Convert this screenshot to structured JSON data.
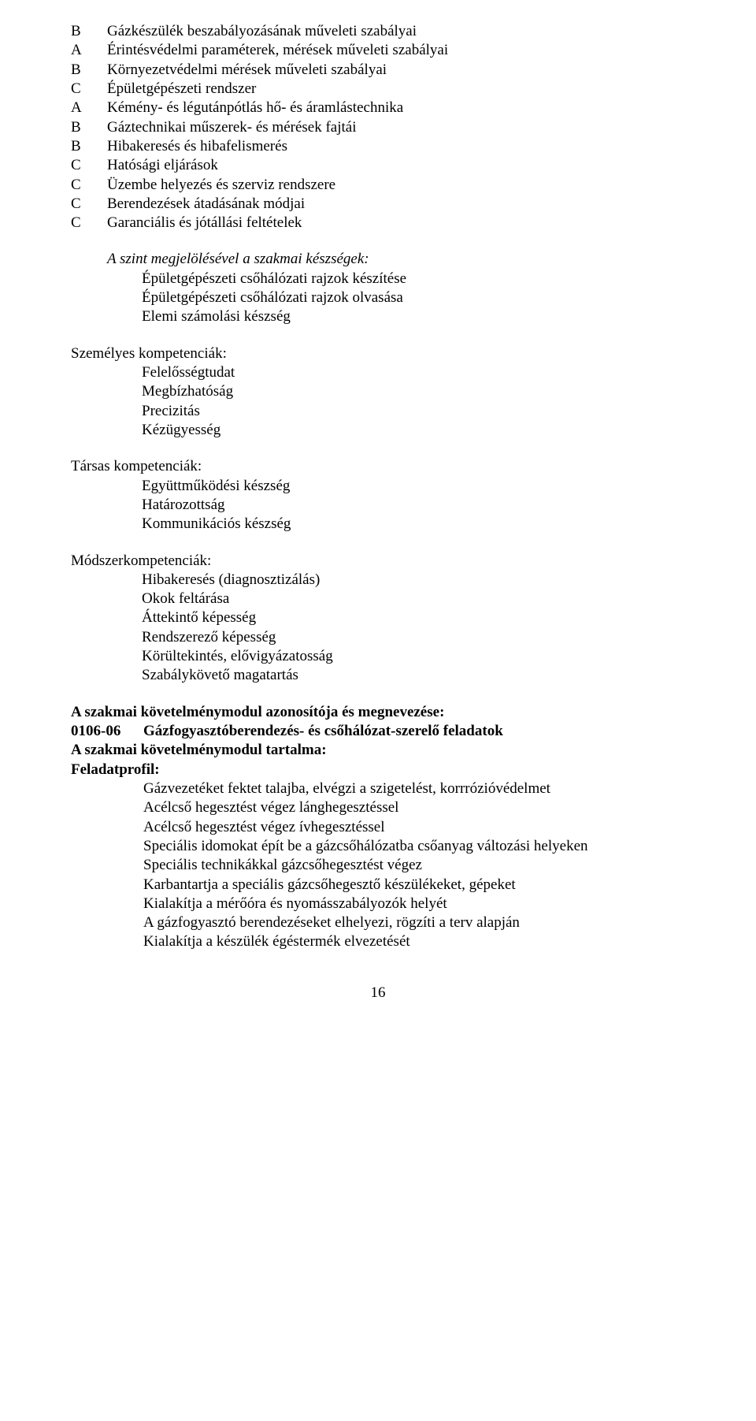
{
  "letterList": [
    {
      "letter": "B",
      "text": "Gázkészülék beszabályozásának műveleti szabályai"
    },
    {
      "letter": "A",
      "text": "Érintésvédelmi paraméterek, mérések műveleti szabályai"
    },
    {
      "letter": "B",
      "text": "Környezetvédelmi mérések műveleti szabályai"
    },
    {
      "letter": "C",
      "text": "Épületgépészeti rendszer"
    },
    {
      "letter": "A",
      "text": "Kémény- és légutánpótlás hő- és áramlástechnika"
    },
    {
      "letter": "B",
      "text": "Gáztechnikai műszerek- és mérések fajtái"
    },
    {
      "letter": "B",
      "text": "Hibakeresés és hibafelismerés"
    },
    {
      "letter": "C",
      "text": "Hatósági eljárások"
    },
    {
      "letter": "C",
      "text": "Üzembe helyezés és szerviz rendszere"
    },
    {
      "letter": "C",
      "text": "Berendezések átadásának módjai"
    },
    {
      "letter": "C",
      "text": "Garanciális és jótállási feltételek"
    }
  ],
  "skillsHeading": "A szint megjelölésével a szakmai készségek:",
  "skillsItems": [
    "Épületgépészeti csőhálózati rajzok készítése",
    "Épületgépészeti csőhálózati rajzok olvasása",
    "Elemi számolási készség"
  ],
  "personal": {
    "title": "Személyes kompetenciák:",
    "items": [
      "Felelősségtudat",
      "Megbízhatóság",
      "Precizitás",
      "Kézügyesség"
    ]
  },
  "social": {
    "title": "Társas kompetenciák:",
    "items": [
      "Együttműködési készség",
      "Határozottság",
      "Kommunikációs készség"
    ]
  },
  "method": {
    "title": "Módszerkompetenciák:",
    "items": [
      "Hibakeresés (diagnosztizálás)",
      "Okok feltárása",
      "Áttekintő képesség",
      "Rendszerező képesség",
      "Körültekintés, elővigyázatosság",
      "Szabálykövető magatartás"
    ]
  },
  "module": {
    "line1": "A szakmai követelménymodul azonosítója és megnevezése:",
    "code": "0106-06",
    "title": "Gázfogyasztóberendezés- és csőhálózat-szerelő feladatok",
    "line3": "A szakmai követelménymodul tartalma:",
    "line4": "Feladatprofil:",
    "items": [
      "Gázvezetéket fektet talajba, elvégzi a szigetelést, korrrózióvédelmet",
      "Acélcső hegesztést végez lánghegesztéssel",
      "Acélcső hegesztést végez ívhegesztéssel",
      "Speciális idomokat épít be a gázcsőhálózatba csőanyag változási helyeken",
      "Speciális technikákkal gázcsőhegesztést végez",
      "Karbantartja a speciális gázcsőhegesztő készülékeket, gépeket",
      "Kialakítja a mérőóra és nyomásszabályozók helyét",
      "A gázfogyasztó berendezéseket elhelyezi, rögzíti a terv alapján",
      "Kialakítja a készülék égéstermék elvezetését"
    ]
  },
  "pageNumber": "16"
}
